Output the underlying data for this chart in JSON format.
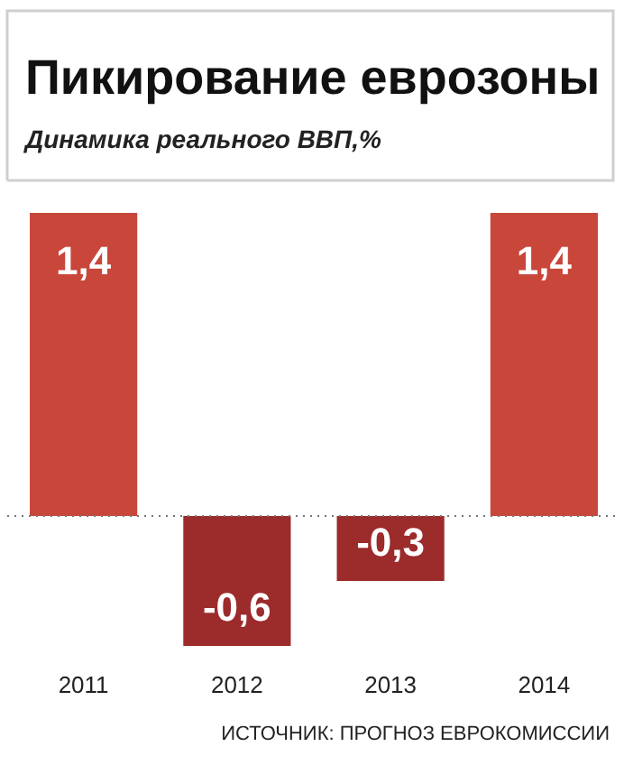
{
  "chart_data": {
    "type": "bar",
    "title": "Пикирование еврозоны",
    "subtitle": "Динамика реального ВВП,%",
    "categories": [
      "2011",
      "2012",
      "2013",
      "2014"
    ],
    "values": [
      1.4,
      -0.6,
      -0.3,
      1.4
    ],
    "value_labels": [
      "1,4",
      "-0,6",
      "-0,3",
      "1,4"
    ],
    "colors": [
      "#c9463b",
      "#9c2b2b",
      "#9c2b2b",
      "#c9463b"
    ],
    "ref_lines": [
      {
        "axis": "y",
        "value": 0,
        "color": "#777777",
        "line_style": "dotted"
      }
    ],
    "annotations": [
      "ИСТОЧНИК: ПРОГНОЗ ЕВРОКОМИССИИ"
    ]
  }
}
